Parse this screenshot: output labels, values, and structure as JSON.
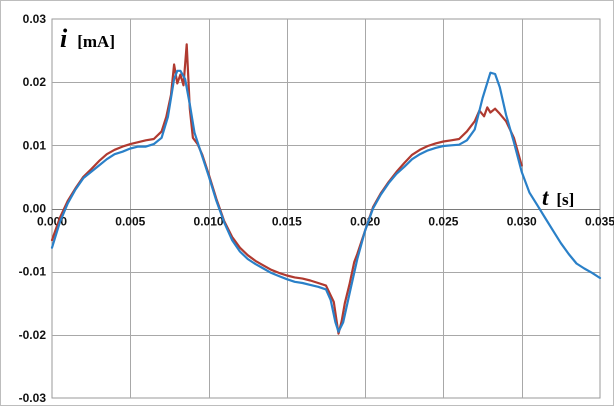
{
  "chart_data": {
    "type": "line",
    "title": "",
    "ylabel_symbol": "i",
    "ylabel_unit": "[mA]",
    "xlabel_symbol": "t",
    "xlabel_unit": "[s]",
    "xlim": [
      0,
      0.035
    ],
    "ylim": [
      -0.03,
      0.03
    ],
    "grid": true,
    "legend": "none",
    "x_ticks": [
      0,
      0.005,
      0.01,
      0.015,
      0.02,
      0.025,
      0.03,
      0.035
    ],
    "x_tick_labels": [
      "0.000",
      "0.005",
      "0.010",
      "0.015",
      "0.020",
      "0.025",
      "0.030",
      "0.035"
    ],
    "y_ticks": [
      0.03,
      0.02,
      0.01,
      0.0,
      -0.01,
      -0.02,
      -0.03
    ],
    "y_tick_labels": [
      "0.03",
      "0.02",
      "0.01",
      "0.00",
      "-0.01",
      "-0.02",
      "-0.03"
    ],
    "series": [
      {
        "color": "#b03a30",
        "points": [
          [
            0.0,
            -0.005
          ],
          [
            0.0005,
            -0.0015
          ],
          [
            0.001,
            0.0012
          ],
          [
            0.0015,
            0.0032
          ],
          [
            0.002,
            0.005
          ],
          [
            0.0025,
            0.0062
          ],
          [
            0.003,
            0.0075
          ],
          [
            0.0035,
            0.0086
          ],
          [
            0.004,
            0.0093
          ],
          [
            0.0045,
            0.0098
          ],
          [
            0.005,
            0.0102
          ],
          [
            0.0055,
            0.0105
          ],
          [
            0.006,
            0.0108
          ],
          [
            0.0065,
            0.011
          ],
          [
            0.007,
            0.0122
          ],
          [
            0.0073,
            0.0145
          ],
          [
            0.0076,
            0.018
          ],
          [
            0.0078,
            0.0228
          ],
          [
            0.008,
            0.0198
          ],
          [
            0.0082,
            0.0212
          ],
          [
            0.0084,
            0.0195
          ],
          [
            0.0086,
            0.026
          ],
          [
            0.0088,
            0.0158
          ],
          [
            0.009,
            0.0112
          ],
          [
            0.0093,
            0.0102
          ],
          [
            0.0096,
            0.0085
          ],
          [
            0.01,
            0.0055
          ],
          [
            0.0105,
            0.0015
          ],
          [
            0.011,
            -0.002
          ],
          [
            0.0115,
            -0.0045
          ],
          [
            0.012,
            -0.0062
          ],
          [
            0.0125,
            -0.0074
          ],
          [
            0.013,
            -0.0083
          ],
          [
            0.0135,
            -0.009
          ],
          [
            0.014,
            -0.0097
          ],
          [
            0.0145,
            -0.0102
          ],
          [
            0.015,
            -0.0106
          ],
          [
            0.0155,
            -0.0109
          ],
          [
            0.016,
            -0.0111
          ],
          [
            0.0165,
            -0.0114
          ],
          [
            0.017,
            -0.0118
          ],
          [
            0.0175,
            -0.0122
          ],
          [
            0.018,
            -0.0148
          ],
          [
            0.0183,
            -0.0198
          ],
          [
            0.0185,
            -0.0178
          ],
          [
            0.0187,
            -0.015
          ],
          [
            0.019,
            -0.012
          ],
          [
            0.0193,
            -0.0085
          ],
          [
            0.0195,
            -0.0072
          ],
          [
            0.02,
            -0.0035
          ],
          [
            0.0205,
            0.0002
          ],
          [
            0.021,
            0.0024
          ],
          [
            0.0215,
            0.0042
          ],
          [
            0.022,
            0.0058
          ],
          [
            0.0225,
            0.0072
          ],
          [
            0.023,
            0.0085
          ],
          [
            0.0235,
            0.0093
          ],
          [
            0.024,
            0.0099
          ],
          [
            0.0245,
            0.0103
          ],
          [
            0.025,
            0.0106
          ],
          [
            0.0255,
            0.0108
          ],
          [
            0.026,
            0.011
          ],
          [
            0.0265,
            0.0122
          ],
          [
            0.027,
            0.0138
          ],
          [
            0.0273,
            0.0155
          ],
          [
            0.0276,
            0.0146
          ],
          [
            0.0278,
            0.016
          ],
          [
            0.028,
            0.0152
          ],
          [
            0.0283,
            0.0158
          ],
          [
            0.0286,
            0.015
          ],
          [
            0.029,
            0.0138
          ],
          [
            0.0295,
            0.0112
          ],
          [
            0.03,
            0.0068
          ]
        ]
      },
      {
        "color": "#2a80c8",
        "points": [
          [
            0.0,
            -0.0062
          ],
          [
            0.0005,
            -0.0022
          ],
          [
            0.001,
            0.0008
          ],
          [
            0.0015,
            0.003
          ],
          [
            0.002,
            0.0048
          ],
          [
            0.0025,
            0.0058
          ],
          [
            0.003,
            0.0068
          ],
          [
            0.0035,
            0.0078
          ],
          [
            0.004,
            0.0086
          ],
          [
            0.0045,
            0.009
          ],
          [
            0.005,
            0.0095
          ],
          [
            0.0055,
            0.0098
          ],
          [
            0.006,
            0.0098
          ],
          [
            0.0065,
            0.0102
          ],
          [
            0.007,
            0.0112
          ],
          [
            0.0074,
            0.0145
          ],
          [
            0.0078,
            0.0205
          ],
          [
            0.008,
            0.0218
          ],
          [
            0.0082,
            0.0218
          ],
          [
            0.0085,
            0.0205
          ],
          [
            0.0088,
            0.0165
          ],
          [
            0.0091,
            0.012
          ],
          [
            0.0095,
            0.009
          ],
          [
            0.01,
            0.0052
          ],
          [
            0.0105,
            0.0012
          ],
          [
            0.011,
            -0.0022
          ],
          [
            0.0115,
            -0.005
          ],
          [
            0.012,
            -0.0068
          ],
          [
            0.0125,
            -0.008
          ],
          [
            0.013,
            -0.0088
          ],
          [
            0.0135,
            -0.0095
          ],
          [
            0.014,
            -0.0102
          ],
          [
            0.0145,
            -0.0107
          ],
          [
            0.015,
            -0.0112
          ],
          [
            0.0155,
            -0.0116
          ],
          [
            0.016,
            -0.0118
          ],
          [
            0.0165,
            -0.0121
          ],
          [
            0.017,
            -0.0124
          ],
          [
            0.0175,
            -0.0128
          ],
          [
            0.0178,
            -0.0145
          ],
          [
            0.0181,
            -0.018
          ],
          [
            0.0183,
            -0.0195
          ],
          [
            0.0186,
            -0.018
          ],
          [
            0.019,
            -0.0135
          ],
          [
            0.0195,
            -0.008
          ],
          [
            0.02,
            -0.0035
          ],
          [
            0.0205,
            0.0
          ],
          [
            0.021,
            0.0022
          ],
          [
            0.0215,
            0.004
          ],
          [
            0.022,
            0.0055
          ],
          [
            0.0225,
            0.0066
          ],
          [
            0.023,
            0.0078
          ],
          [
            0.0235,
            0.0086
          ],
          [
            0.024,
            0.0092
          ],
          [
            0.0245,
            0.0096
          ],
          [
            0.025,
            0.0099
          ],
          [
            0.0255,
            0.01
          ],
          [
            0.026,
            0.0101
          ],
          [
            0.0265,
            0.0108
          ],
          [
            0.027,
            0.0125
          ],
          [
            0.0275,
            0.0175
          ],
          [
            0.028,
            0.0215
          ],
          [
            0.0283,
            0.0213
          ],
          [
            0.0286,
            0.0192
          ],
          [
            0.029,
            0.0148
          ],
          [
            0.0295,
            0.0105
          ],
          [
            0.03,
            0.0058
          ],
          [
            0.0305,
            0.0025
          ],
          [
            0.031,
            0.0005
          ],
          [
            0.0315,
            -0.0015
          ],
          [
            0.032,
            -0.0035
          ],
          [
            0.0325,
            -0.0055
          ],
          [
            0.033,
            -0.0072
          ],
          [
            0.0335,
            -0.0087
          ],
          [
            0.034,
            -0.0095
          ],
          [
            0.0345,
            -0.0102
          ],
          [
            0.035,
            -0.011
          ]
        ]
      }
    ]
  }
}
